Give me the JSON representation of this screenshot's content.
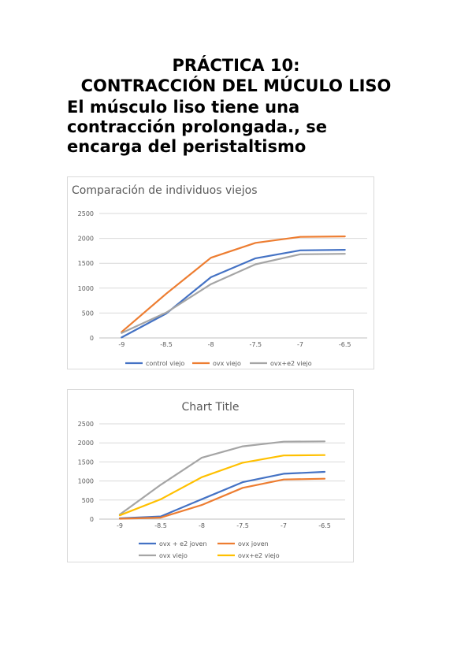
{
  "page": {
    "heading_line1": "PRÁCTICA 10:",
    "heading_line2": "CONTRACCIÓN DEL MÚCULO LISO",
    "subtitle_line1": "El músculo liso tiene una",
    "subtitle_line2": "contracción prolongada., se",
    "subtitle_line3": "encarga del peristaltismo"
  },
  "chart_data": [
    {
      "type": "line",
      "title": "Comparación de individuos viejos",
      "categories": [
        "-9",
        "-8.5",
        "-8",
        "-7.5",
        "-7",
        "-6.5"
      ],
      "ylim": [
        0,
        2500
      ],
      "yticks": [
        0,
        500,
        1000,
        1500,
        2000,
        2500
      ],
      "grid": true,
      "legend": "bottom",
      "series": [
        {
          "name": "control viejo",
          "color": "#4472C4",
          "values": [
            10,
            490,
            1220,
            1600,
            1760,
            1770
          ]
        },
        {
          "name": "ovx viejo",
          "color": "#ED7D31",
          "values": [
            120,
            890,
            1610,
            1910,
            2030,
            2040
          ]
        },
        {
          "name": "ovx+e2 viejo",
          "color": "#A5A5A5",
          "values": [
            100,
            510,
            1080,
            1480,
            1680,
            1690
          ]
        }
      ]
    },
    {
      "type": "line",
      "title": "Chart Title",
      "categories": [
        "-9",
        "-8.5",
        "-8",
        "-7.5",
        "-7",
        "-6.5"
      ],
      "ylim": [
        0,
        2500
      ],
      "yticks": [
        0,
        500,
        1000,
        1500,
        2000,
        2500
      ],
      "grid": true,
      "legend": "bottom",
      "series": [
        {
          "name": "ovx + e2 joven",
          "color": "#4472C4",
          "values": [
            20,
            70,
            520,
            970,
            1190,
            1240
          ]
        },
        {
          "name": "ovx joven",
          "color": "#ED7D31",
          "values": [
            10,
            40,
            370,
            820,
            1040,
            1060
          ]
        },
        {
          "name": "ovx viejo",
          "color": "#A5A5A5",
          "values": [
            120,
            900,
            1610,
            1910,
            2030,
            2040
          ]
        },
        {
          "name": "ovx+e2 viejo",
          "color": "#FFC000",
          "values": [
            100,
            520,
            1100,
            1480,
            1670,
            1680
          ]
        }
      ]
    }
  ]
}
